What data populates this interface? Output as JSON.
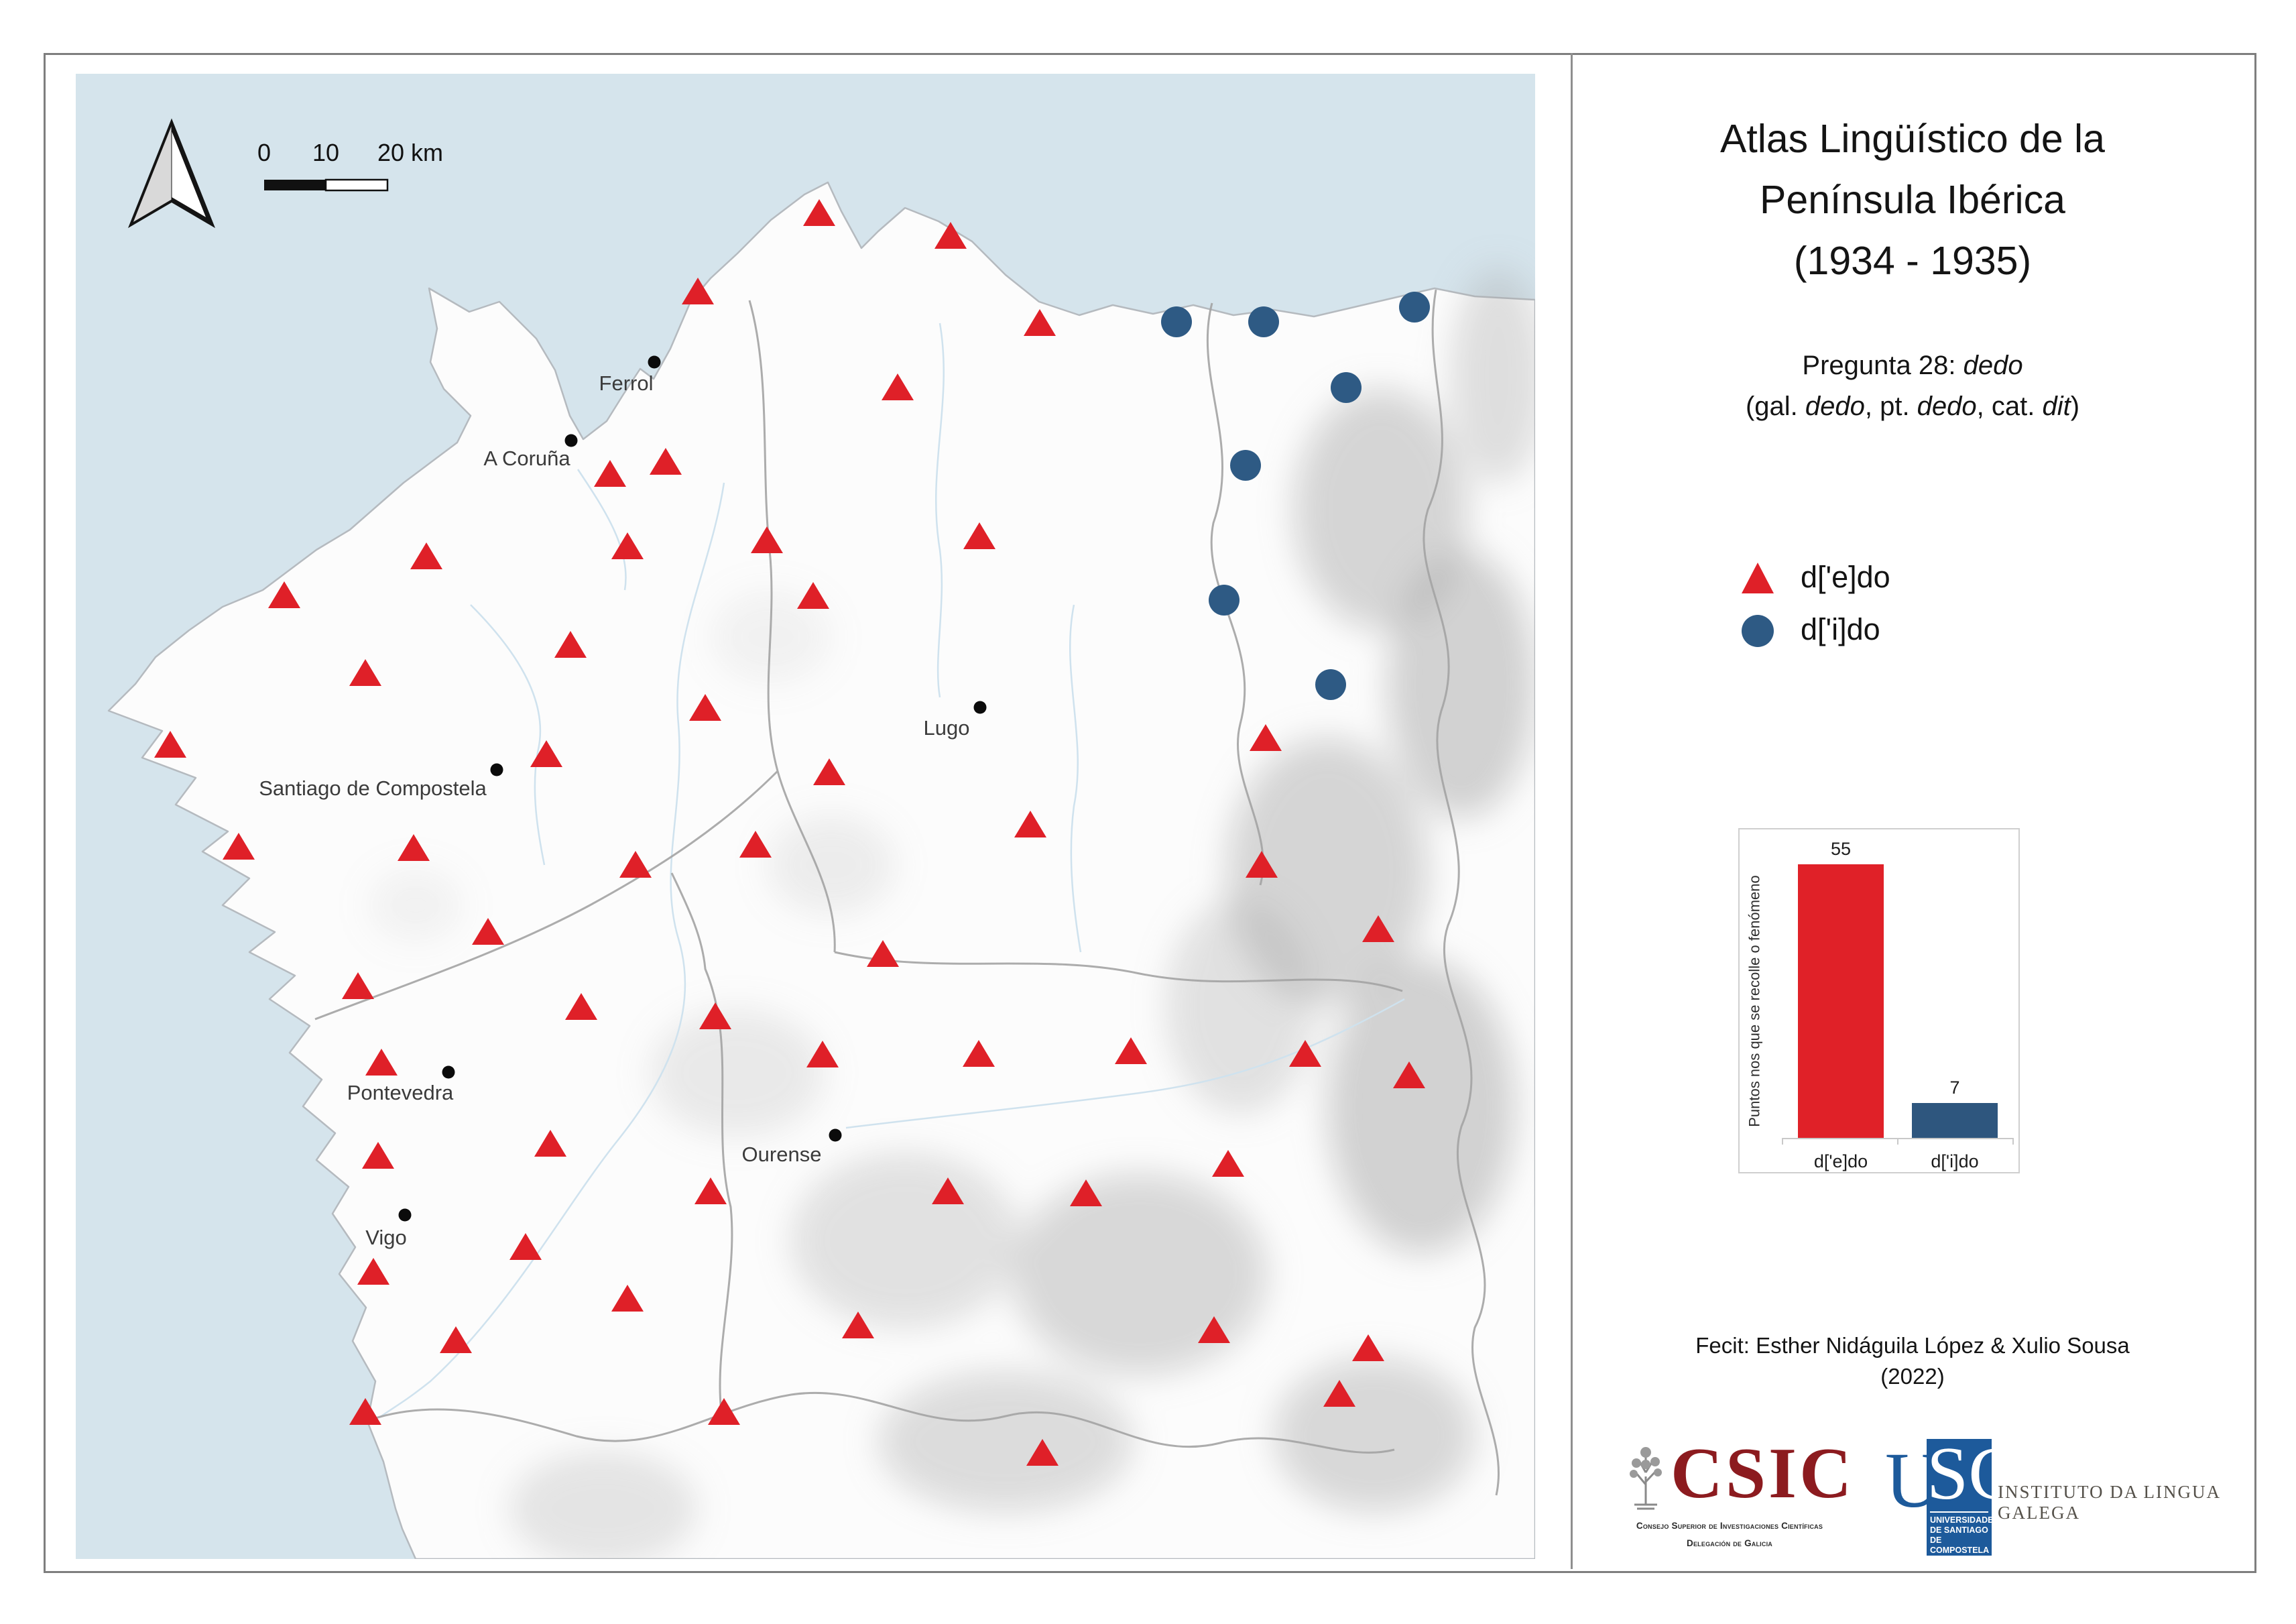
{
  "chart_data": {
    "type": "bar",
    "title": "",
    "categories": [
      "d['e]do",
      "d['i]do"
    ],
    "values": [
      55,
      7
    ],
    "colors": [
      "#e02128",
      "#2e567e"
    ],
    "xlabel": "",
    "ylabel": "Puntos nos que se recolle o fenómeno",
    "ylim": [
      0,
      58
    ],
    "grid": false,
    "legend_position": "none",
    "value_labels": true
  },
  "map": {
    "ocean_color": "#d5e4ec",
    "land_color": "#fcfcfc",
    "scalebar_labels": [
      "0",
      "10",
      "20 km"
    ],
    "north_arrow": "north-arrow",
    "cities": [
      {
        "name": "Ferrol",
        "dot": [
          976,
          540
        ],
        "label": [
          934,
          572
        ]
      },
      {
        "name": "A Coruña",
        "dot": [
          852,
          657
        ],
        "label": [
          786,
          684
        ]
      },
      {
        "name": "Lugo",
        "dot": [
          1462,
          1055
        ],
        "label": [
          1412,
          1086
        ]
      },
      {
        "name": "Santiago de Compostela",
        "dot": [
          741,
          1148
        ],
        "label": [
          556,
          1176
        ]
      },
      {
        "name": "Pontevedra",
        "dot": [
          669,
          1599
        ],
        "label": [
          597,
          1630
        ]
      },
      {
        "name": "Ourense",
        "dot": [
          1246,
          1693
        ],
        "label": [
          1166,
          1722
        ]
      },
      {
        "name": "Vigo",
        "dot": [
          604,
          1812
        ],
        "label": [
          576,
          1846
        ]
      }
    ],
    "markers": {
      "triangles": {
        "label": "d['e]do",
        "color": "#df2028",
        "points": [
          [
            1041,
            435
          ],
          [
            1222,
            318
          ],
          [
            1418,
            352
          ],
          [
            1551,
            482
          ],
          [
            1339,
            578
          ],
          [
            910,
            707
          ],
          [
            993,
            689
          ],
          [
            636,
            830
          ],
          [
            936,
            815
          ],
          [
            1144,
            806
          ],
          [
            1461,
            800
          ],
          [
            424,
            888
          ],
          [
            1213,
            889
          ],
          [
            851,
            962
          ],
          [
            545,
            1004
          ],
          [
            1052,
            1056
          ],
          [
            254,
            1111
          ],
          [
            815,
            1125
          ],
          [
            1888,
            1101
          ],
          [
            1237,
            1152
          ],
          [
            1537,
            1230
          ],
          [
            356,
            1263
          ],
          [
            617,
            1265
          ],
          [
            948,
            1290
          ],
          [
            1127,
            1260
          ],
          [
            1882,
            1290
          ],
          [
            2056,
            1386
          ],
          [
            1317,
            1423
          ],
          [
            728,
            1390
          ],
          [
            534,
            1471
          ],
          [
            867,
            1502
          ],
          [
            1067,
            1516
          ],
          [
            569,
            1585
          ],
          [
            1227,
            1573
          ],
          [
            1460,
            1572
          ],
          [
            1687,
            1568
          ],
          [
            1947,
            1572
          ],
          [
            2102,
            1604
          ],
          [
            821,
            1706
          ],
          [
            564,
            1724
          ],
          [
            1060,
            1777
          ],
          [
            1414,
            1777
          ],
          [
            1620,
            1780
          ],
          [
            1832,
            1736
          ],
          [
            784,
            1860
          ],
          [
            557,
            1897
          ],
          [
            936,
            1937
          ],
          [
            1280,
            1977
          ],
          [
            680,
            1999
          ],
          [
            1811,
            1984
          ],
          [
            2041,
            2011
          ],
          [
            1998,
            2079
          ],
          [
            545,
            2106
          ],
          [
            1080,
            2106
          ],
          [
            1555,
            2167
          ]
        ]
      },
      "circles": {
        "label": "d['i]do",
        "color": "#2e5a84",
        "points": [
          [
            1755,
            480
          ],
          [
            1885,
            480
          ],
          [
            2110,
            458
          ],
          [
            2008,
            578
          ],
          [
            1858,
            694
          ],
          [
            1826,
            895
          ],
          [
            1985,
            1021
          ]
        ]
      }
    }
  },
  "panel": {
    "title_lines": [
      "Atlas Lingüístico de la",
      "Península Ibérica",
      "(1934 - 1935)"
    ],
    "subtitle1_segments": [
      {
        "t": "Pregunta 28: "
      },
      {
        "t": "dedo",
        "i": true
      }
    ],
    "subtitle2_segments": [
      {
        "t": "(gal. "
      },
      {
        "t": "dedo",
        "i": true
      },
      {
        "t": ", pt. "
      },
      {
        "t": "dedo",
        "i": true
      },
      {
        "t": ", cat. "
      },
      {
        "t": "dit",
        "i": true
      },
      {
        "t": ")"
      }
    ],
    "legend": [
      {
        "label": "d['e]do",
        "shape": "triangle",
        "color": "#df2028"
      },
      {
        "label": "d['i]do",
        "shape": "circle",
        "color": "#2e5a84"
      }
    ],
    "credit_lines": [
      "Fecit: Esther Nidáguila López & Xulio Sousa",
      "(2022)"
    ],
    "logos": {
      "csic_acronym": "CSIC",
      "csic_line1": "Consejo Superior de Investigaciones Científicas",
      "csic_line2": "Delegación de Galicia",
      "usc_u": "U",
      "usc_sc": "SC",
      "usc_lines": [
        "UNIVERSIDADE",
        "DE SANTIAGO",
        "DE COMPOSTELA"
      ],
      "ilg": "INSTITUTO DA LINGUA GALEGA"
    }
  }
}
